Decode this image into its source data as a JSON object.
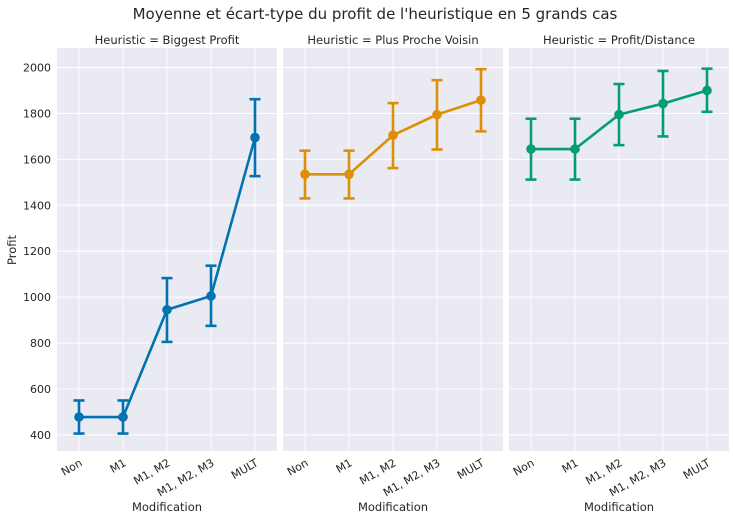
{
  "chart_data": {
    "type": "line",
    "title": "Moyenne et écart-type du profit de l'heuristique en 5 grands cas",
    "xlabel": "Modification",
    "ylabel": "Profit",
    "ylim": [
      330,
      2085
    ],
    "yticks": [
      400,
      600,
      800,
      1000,
      1200,
      1400,
      1600,
      1800,
      2000
    ],
    "categories": [
      "Non",
      "M1",
      "M1, M2",
      "M1, M2, M3",
      "MULT"
    ],
    "grid": true,
    "facets": [
      {
        "title": "Heuristic = Biggest Profit",
        "color": "#0173b2",
        "mean": [
          478,
          478,
          945,
          1005,
          1695
        ],
        "lower": [
          406,
          406,
          805,
          875,
          1527
        ],
        "upper": [
          550,
          550,
          1083,
          1137,
          1862
        ]
      },
      {
        "title": "Heuristic = Plus Proche Voisin",
        "color": "#de8f05",
        "mean": [
          1535,
          1535,
          1705,
          1795,
          1858
        ],
        "lower": [
          1430,
          1430,
          1562,
          1643,
          1722
        ],
        "upper": [
          1638,
          1638,
          1845,
          1945,
          1993
        ]
      },
      {
        "title": "Heuristic = Profit/Distance",
        "color": "#029e73",
        "mean": [
          1645,
          1645,
          1795,
          1843,
          1900
        ],
        "lower": [
          1512,
          1512,
          1662,
          1700,
          1807
        ],
        "upper": [
          1777,
          1777,
          1928,
          1985,
          1995
        ]
      }
    ]
  }
}
